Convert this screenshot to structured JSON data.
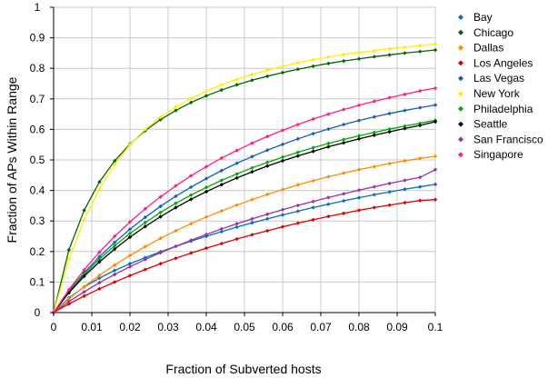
{
  "chart_data": {
    "type": "line",
    "xlabel": "Fraction of Subverted hosts",
    "ylabel": "Fraction of APs Within Range",
    "xlim": [
      0,
      0.1
    ],
    "ylim": [
      0,
      1
    ],
    "x_ticks": [
      "0",
      "0.01",
      "0.02",
      "0.03",
      "0.04",
      "0.05",
      "0.06",
      "0.07",
      "0.08",
      "0.09",
      "0.1"
    ],
    "y_ticks": [
      "0",
      "0.1",
      "0.2",
      "0.3",
      "0.4",
      "0.5",
      "0.6",
      "0.7",
      "0.8",
      "0.9",
      "1"
    ],
    "grid": true,
    "legend_position": "right",
    "x": [
      0,
      0.004,
      0.008,
      0.012,
      0.016,
      0.02,
      0.024,
      0.028,
      0.032,
      0.036,
      0.04,
      0.044,
      0.048,
      0.052,
      0.056,
      0.06,
      0.064,
      0.068,
      0.072,
      0.076,
      0.08,
      0.084,
      0.088,
      0.092,
      0.096,
      0.1
    ],
    "series": [
      {
        "name": "Bay",
        "color": "#0070c0",
        "values": [
          0,
          0.048,
          0.084,
          0.113,
          0.138,
          0.16,
          0.18,
          0.199,
          0.217,
          0.234,
          0.25,
          0.265,
          0.28,
          0.294,
          0.307,
          0.32,
          0.332,
          0.344,
          0.355,
          0.366,
          0.376,
          0.386,
          0.395,
          0.404,
          0.412,
          0.42
        ]
      },
      {
        "name": "Chicago",
        "color": "#006600",
        "values": [
          0,
          0.205,
          0.335,
          0.428,
          0.497,
          0.552,
          0.596,
          0.632,
          0.662,
          0.688,
          0.71,
          0.729,
          0.746,
          0.761,
          0.774,
          0.786,
          0.797,
          0.807,
          0.816,
          0.824,
          0.831,
          0.838,
          0.844,
          0.85,
          0.855,
          0.86
        ]
      },
      {
        "name": "Dallas",
        "color": "#ff8c00",
        "values": [
          0,
          0.045,
          0.085,
          0.122,
          0.156,
          0.187,
          0.216,
          0.243,
          0.268,
          0.291,
          0.313,
          0.333,
          0.352,
          0.37,
          0.387,
          0.403,
          0.418,
          0.432,
          0.445,
          0.457,
          0.468,
          0.478,
          0.488,
          0.497,
          0.505,
          0.512
        ]
      },
      {
        "name": "Los Angeles",
        "color": "#e00000",
        "values": [
          0,
          0.028,
          0.054,
          0.078,
          0.1,
          0.121,
          0.141,
          0.16,
          0.178,
          0.195,
          0.211,
          0.226,
          0.241,
          0.255,
          0.268,
          0.281,
          0.293,
          0.304,
          0.315,
          0.325,
          0.335,
          0.344,
          0.352,
          0.36,
          0.367,
          0.37
        ]
      },
      {
        "name": "Las Vegas",
        "color": "#1060c0",
        "values": [
          0,
          0.07,
          0.13,
          0.183,
          0.23,
          0.273,
          0.312,
          0.348,
          0.381,
          0.411,
          0.439,
          0.465,
          0.489,
          0.511,
          0.532,
          0.551,
          0.569,
          0.586,
          0.601,
          0.616,
          0.629,
          0.641,
          0.652,
          0.662,
          0.671,
          0.68
        ]
      },
      {
        "name": "New York",
        "color": "#ffee00",
        "values": [
          0,
          0.175,
          0.305,
          0.405,
          0.485,
          0.55,
          0.6,
          0.64,
          0.673,
          0.701,
          0.725,
          0.746,
          0.764,
          0.78,
          0.794,
          0.807,
          0.818,
          0.828,
          0.837,
          0.845,
          0.852,
          0.858,
          0.864,
          0.869,
          0.874,
          0.88
        ]
      },
      {
        "name": "Philadelphia",
        "color": "#00aa00",
        "values": [
          0,
          0.068,
          0.125,
          0.175,
          0.219,
          0.259,
          0.295,
          0.328,
          0.358,
          0.385,
          0.41,
          0.433,
          0.454,
          0.474,
          0.492,
          0.509,
          0.525,
          0.54,
          0.554,
          0.567,
          0.579,
          0.59,
          0.601,
          0.611,
          0.62,
          0.63
        ]
      },
      {
        "name": "Seattle",
        "color": "#000000",
        "values": [
          0,
          0.065,
          0.119,
          0.166,
          0.208,
          0.247,
          0.282,
          0.314,
          0.344,
          0.371,
          0.396,
          0.419,
          0.441,
          0.461,
          0.48,
          0.497,
          0.513,
          0.528,
          0.543,
          0.556,
          0.569,
          0.581,
          0.592,
          0.603,
          0.613,
          0.625
        ]
      },
      {
        "name": "San Francisco",
        "color": "#9932a0",
        "values": [
          0,
          0.036,
          0.068,
          0.098,
          0.125,
          0.15,
          0.174,
          0.196,
          0.217,
          0.237,
          0.256,
          0.274,
          0.291,
          0.307,
          0.322,
          0.337,
          0.351,
          0.364,
          0.377,
          0.389,
          0.401,
          0.412,
          0.423,
          0.433,
          0.443,
          0.468
        ]
      },
      {
        "name": "Singapore",
        "color": "#ff2080",
        "values": [
          0,
          0.075,
          0.14,
          0.198,
          0.25,
          0.297,
          0.34,
          0.379,
          0.415,
          0.448,
          0.478,
          0.506,
          0.531,
          0.555,
          0.577,
          0.597,
          0.616,
          0.634,
          0.65,
          0.665,
          0.679,
          0.692,
          0.704,
          0.715,
          0.726,
          0.735
        ]
      }
    ]
  }
}
